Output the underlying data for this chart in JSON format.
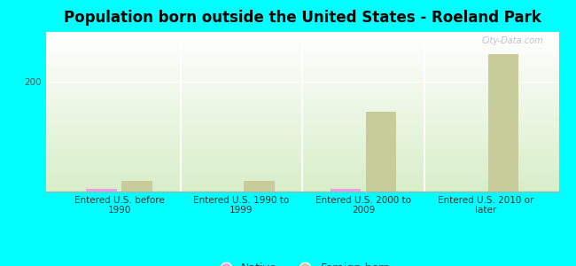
{
  "title": "Population born outside the United States - Roeland Park",
  "categories": [
    "Entered U.S. before\n1990",
    "Entered U.S. 1990 to\n1999",
    "Entered U.S. 2000 to\n2009",
    "Entered U.S. 2010 or\nlater"
  ],
  "native_values": [
    5,
    0,
    5,
    0
  ],
  "foreign_values": [
    20,
    20,
    145,
    250
  ],
  "native_color": "#e8a0e8",
  "foreign_color": "#c8cc9a",
  "background_color": "#00ffff",
  "plot_bg_top_color": "#ffffff",
  "plot_bg_bottom_color": "#d8eec8",
  "ytick_label": "200",
  "ytick_value": 200,
  "ylim": [
    0,
    290
  ],
  "bar_width": 0.25,
  "title_fontsize": 12,
  "tick_fontsize": 7.5,
  "legend_fontsize": 9,
  "watermark": "City-Data.com"
}
